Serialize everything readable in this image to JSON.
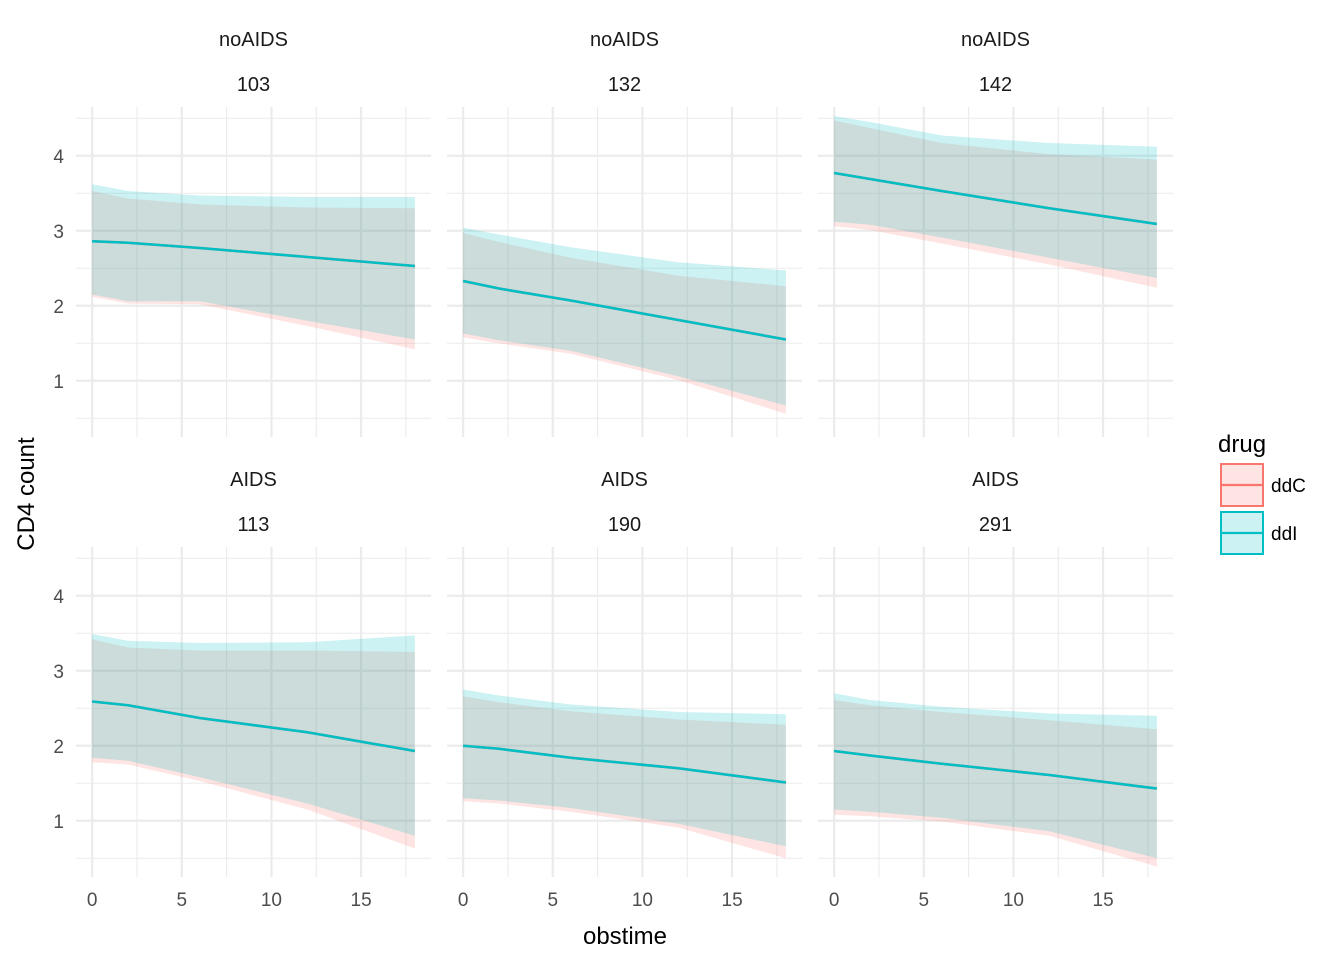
{
  "chart_data": {
    "type": "area",
    "xlabel": "obstime",
    "ylabel": "CD4 count",
    "xlim": [
      -0.9,
      18.9
    ],
    "ylim": [
      0.25,
      4.65
    ],
    "x_ticks": [
      0,
      5,
      10,
      15
    ],
    "y_ticks": [
      1,
      2,
      3,
      4
    ],
    "grid": true,
    "legend": {
      "title": "drug",
      "position": "right",
      "entries": [
        {
          "label": "ddC",
          "line_color": "#F8766D",
          "fill_color": "#F8766D"
        },
        {
          "label": "ddI",
          "line_color": "#00BFC4",
          "fill_color": "#00BFC4"
        }
      ]
    },
    "panels": [
      {
        "strip": [
          "noAIDS",
          "103"
        ],
        "ddC": {
          "x": [
            0,
            2,
            6,
            12,
            18
          ],
          "line": [
            2.86,
            2.84,
            2.77,
            2.65,
            2.53
          ],
          "lower": [
            2.12,
            2.03,
            2.02,
            1.73,
            1.42
          ],
          "upper": [
            3.53,
            3.43,
            3.35,
            3.31,
            3.3
          ]
        },
        "ddI": {
          "x": [
            0,
            2,
            6,
            12,
            18
          ],
          "line": [
            2.86,
            2.84,
            2.77,
            2.65,
            2.53
          ],
          "lower": [
            2.15,
            2.06,
            2.06,
            1.8,
            1.55
          ],
          "upper": [
            3.62,
            3.53,
            3.47,
            3.45,
            3.45
          ]
        }
      },
      {
        "strip": [
          "noAIDS",
          "132"
        ],
        "ddC": {
          "x": [
            0,
            2,
            6,
            12,
            18
          ],
          "line": [
            2.33,
            2.23,
            2.07,
            1.81,
            1.55
          ],
          "lower": [
            1.58,
            1.5,
            1.36,
            1.01,
            0.56
          ],
          "upper": [
            2.97,
            2.85,
            2.64,
            2.4,
            2.26
          ]
        },
        "ddI": {
          "x": [
            0,
            2,
            6,
            12,
            18
          ],
          "line": [
            2.33,
            2.23,
            2.07,
            1.81,
            1.55
          ],
          "lower": [
            1.63,
            1.54,
            1.4,
            1.06,
            0.67
          ],
          "upper": [
            3.04,
            2.95,
            2.78,
            2.58,
            2.47
          ]
        }
      },
      {
        "strip": [
          "noAIDS",
          "142"
        ],
        "ddC": {
          "x": [
            0,
            2,
            6,
            12,
            18
          ],
          "line": [
            3.77,
            3.69,
            3.53,
            3.3,
            3.09
          ],
          "lower": [
            3.06,
            3.01,
            2.83,
            2.55,
            2.24
          ],
          "upper": [
            4.47,
            4.37,
            4.17,
            4.02,
            3.95
          ]
        },
        "ddI": {
          "x": [
            0,
            2,
            6,
            12,
            18
          ],
          "line": [
            3.77,
            3.69,
            3.53,
            3.3,
            3.09
          ],
          "lower": [
            3.12,
            3.08,
            2.91,
            2.64,
            2.37
          ],
          "upper": [
            4.53,
            4.45,
            4.27,
            4.17,
            4.12
          ]
        }
      },
      {
        "strip": [
          "AIDS",
          "113"
        ],
        "ddC": {
          "x": [
            0,
            2,
            6,
            12,
            18
          ],
          "line": [
            2.59,
            2.54,
            2.37,
            2.18,
            1.93
          ],
          "lower": [
            1.78,
            1.75,
            1.53,
            1.15,
            0.63
          ],
          "upper": [
            3.42,
            3.31,
            3.27,
            3.27,
            3.25
          ]
        },
        "ddI": {
          "x": [
            0,
            2,
            6,
            12,
            18
          ],
          "line": [
            2.59,
            2.54,
            2.37,
            2.18,
            1.93
          ],
          "lower": [
            1.84,
            1.8,
            1.58,
            1.23,
            0.8
          ],
          "upper": [
            3.49,
            3.4,
            3.37,
            3.38,
            3.47
          ]
        }
      },
      {
        "strip": [
          "AIDS",
          "190"
        ],
        "ddC": {
          "x": [
            0,
            2,
            6,
            12,
            18
          ],
          "line": [
            2.0,
            1.96,
            1.84,
            1.7,
            1.51
          ],
          "lower": [
            1.26,
            1.23,
            1.12,
            0.91,
            0.5
          ],
          "upper": [
            2.66,
            2.58,
            2.46,
            2.35,
            2.28
          ]
        },
        "ddI": {
          "x": [
            0,
            2,
            6,
            12,
            18
          ],
          "line": [
            2.0,
            1.96,
            1.84,
            1.7,
            1.51
          ],
          "lower": [
            1.3,
            1.27,
            1.17,
            0.96,
            0.66
          ],
          "upper": [
            2.75,
            2.67,
            2.55,
            2.45,
            2.42
          ]
        }
      },
      {
        "strip": [
          "AIDS",
          "291"
        ],
        "ddC": {
          "x": [
            0,
            2,
            6,
            12,
            18
          ],
          "line": [
            1.93,
            1.87,
            1.76,
            1.61,
            1.43
          ],
          "lower": [
            1.08,
            1.06,
            0.99,
            0.8,
            0.39
          ],
          "upper": [
            2.61,
            2.54,
            2.45,
            2.34,
            2.22
          ]
        },
        "ddI": {
          "x": [
            0,
            2,
            6,
            12,
            18
          ],
          "line": [
            1.93,
            1.87,
            1.76,
            1.61,
            1.43
          ],
          "lower": [
            1.15,
            1.12,
            1.04,
            0.86,
            0.5
          ],
          "upper": [
            2.7,
            2.61,
            2.52,
            2.43,
            2.4
          ]
        }
      }
    ]
  }
}
